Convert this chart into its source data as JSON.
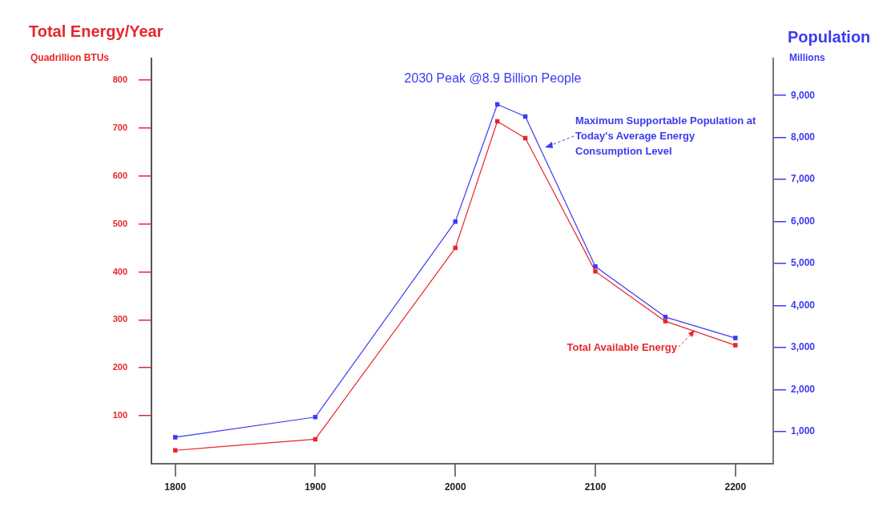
{
  "chart_data": {
    "type": "line",
    "ylabel": "Total Energy/Year",
    "y2label": "Population",
    "annotations": [
      "2030 Peak @8.9 Billion People",
      "Quadrillion BTUs",
      "Millions"
    ],
    "x": [
      1800,
      1900,
      2000,
      2030,
      2050,
      2100,
      2150,
      2200
    ],
    "series": [
      {
        "name": "Total Available Energy",
        "color": "#e8262a",
        "values": [
          28,
          51,
          450,
          714,
          679,
          401,
          297,
          247
        ]
      },
      {
        "name": "Maximum Supportable Population at Today's Average Energy Consumption Level",
        "color": "#3b3bf0",
        "axis": "y2",
        "values": [
          870,
          1350,
          6000,
          8790,
          8500,
          4930,
          3730,
          3230
        ]
      }
    ],
    "xlim": [
      1783,
      2227
    ],
    "xticks": [
      1800,
      1900,
      2000,
      2100,
      2200
    ],
    "ylim": [
      0,
      845
    ],
    "yticks": [
      100,
      200,
      300,
      400,
      500,
      600,
      700,
      800
    ],
    "y2lim": [
      240,
      9880
    ],
    "y2ticks": [
      {
        "value": 1000,
        "label": "1,000"
      },
      {
        "value": 2000,
        "label": "2,000"
      },
      {
        "value": 3000,
        "label": "3,000"
      },
      {
        "value": 4000,
        "label": "4,000"
      },
      {
        "value": 5000,
        "label": "5,000"
      },
      {
        "value": 6000,
        "label": "6,000"
      },
      {
        "value": 7000,
        "label": "7,000"
      },
      {
        "value": 8000,
        "label": "8,000"
      },
      {
        "value": 9000,
        "label": "9,000"
      }
    ],
    "grid": false,
    "legend": "right",
    "marker": "square",
    "line_style": "solid"
  }
}
